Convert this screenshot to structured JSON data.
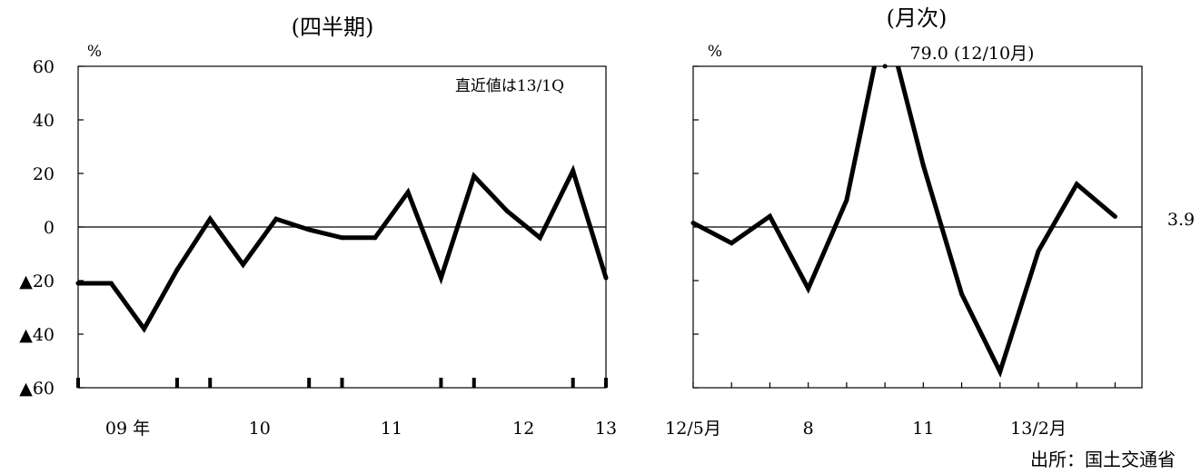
{
  "source_note": "出所：国土交通省",
  "chart_data": [
    {
      "type": "line",
      "title": "(四半期)",
      "ylabel": "%",
      "ylim": [
        -60,
        60
      ],
      "yticks": [
        60,
        40,
        20,
        0,
        -20,
        -40,
        -60
      ],
      "ytick_labels": [
        "60",
        "40",
        "20",
        "0",
        "▲20",
        "▲40",
        "▲60"
      ],
      "annotation": "直近値は13/1Q",
      "x_labels": [
        "09 年",
        "10",
        "11",
        "12",
        "13"
      ],
      "x": [
        "09/1Q",
        "09/2Q",
        "09/3Q",
        "09/4Q",
        "10/1Q",
        "10/2Q",
        "10/3Q",
        "10/4Q",
        "11/1Q",
        "11/2Q",
        "11/3Q",
        "11/4Q",
        "12/1Q",
        "12/2Q",
        "12/3Q",
        "12/4Q",
        "13/1Q"
      ],
      "values": [
        -21,
        -21,
        -38,
        -16,
        3,
        -14,
        3,
        -1,
        -4,
        -4,
        13,
        -19,
        19,
        6,
        -4,
        21,
        -19
      ],
      "grid": false,
      "zero_line": true
    },
    {
      "type": "line",
      "title": "(月次)",
      "ylabel": "%",
      "ylim": [
        -60,
        60
      ],
      "yticks": [
        60,
        40,
        20,
        0,
        -20,
        -40,
        -60
      ],
      "x_labels": [
        "12/5月",
        "8",
        "11",
        "13/2月"
      ],
      "x": [
        "12/5",
        "12/6",
        "12/7",
        "12/8",
        "12/9",
        "12/10",
        "12/11",
        "12/12",
        "13/1",
        "13/2",
        "13/3",
        "13/4"
      ],
      "values": [
        1.5,
        -6,
        4,
        -23,
        10,
        79.0,
        23,
        -25,
        -54,
        -9,
        16,
        3.9
      ],
      "peak_label": "79.0 (12/10月)",
      "last_value_label": "3.9",
      "grid": false,
      "zero_line": true
    }
  ]
}
